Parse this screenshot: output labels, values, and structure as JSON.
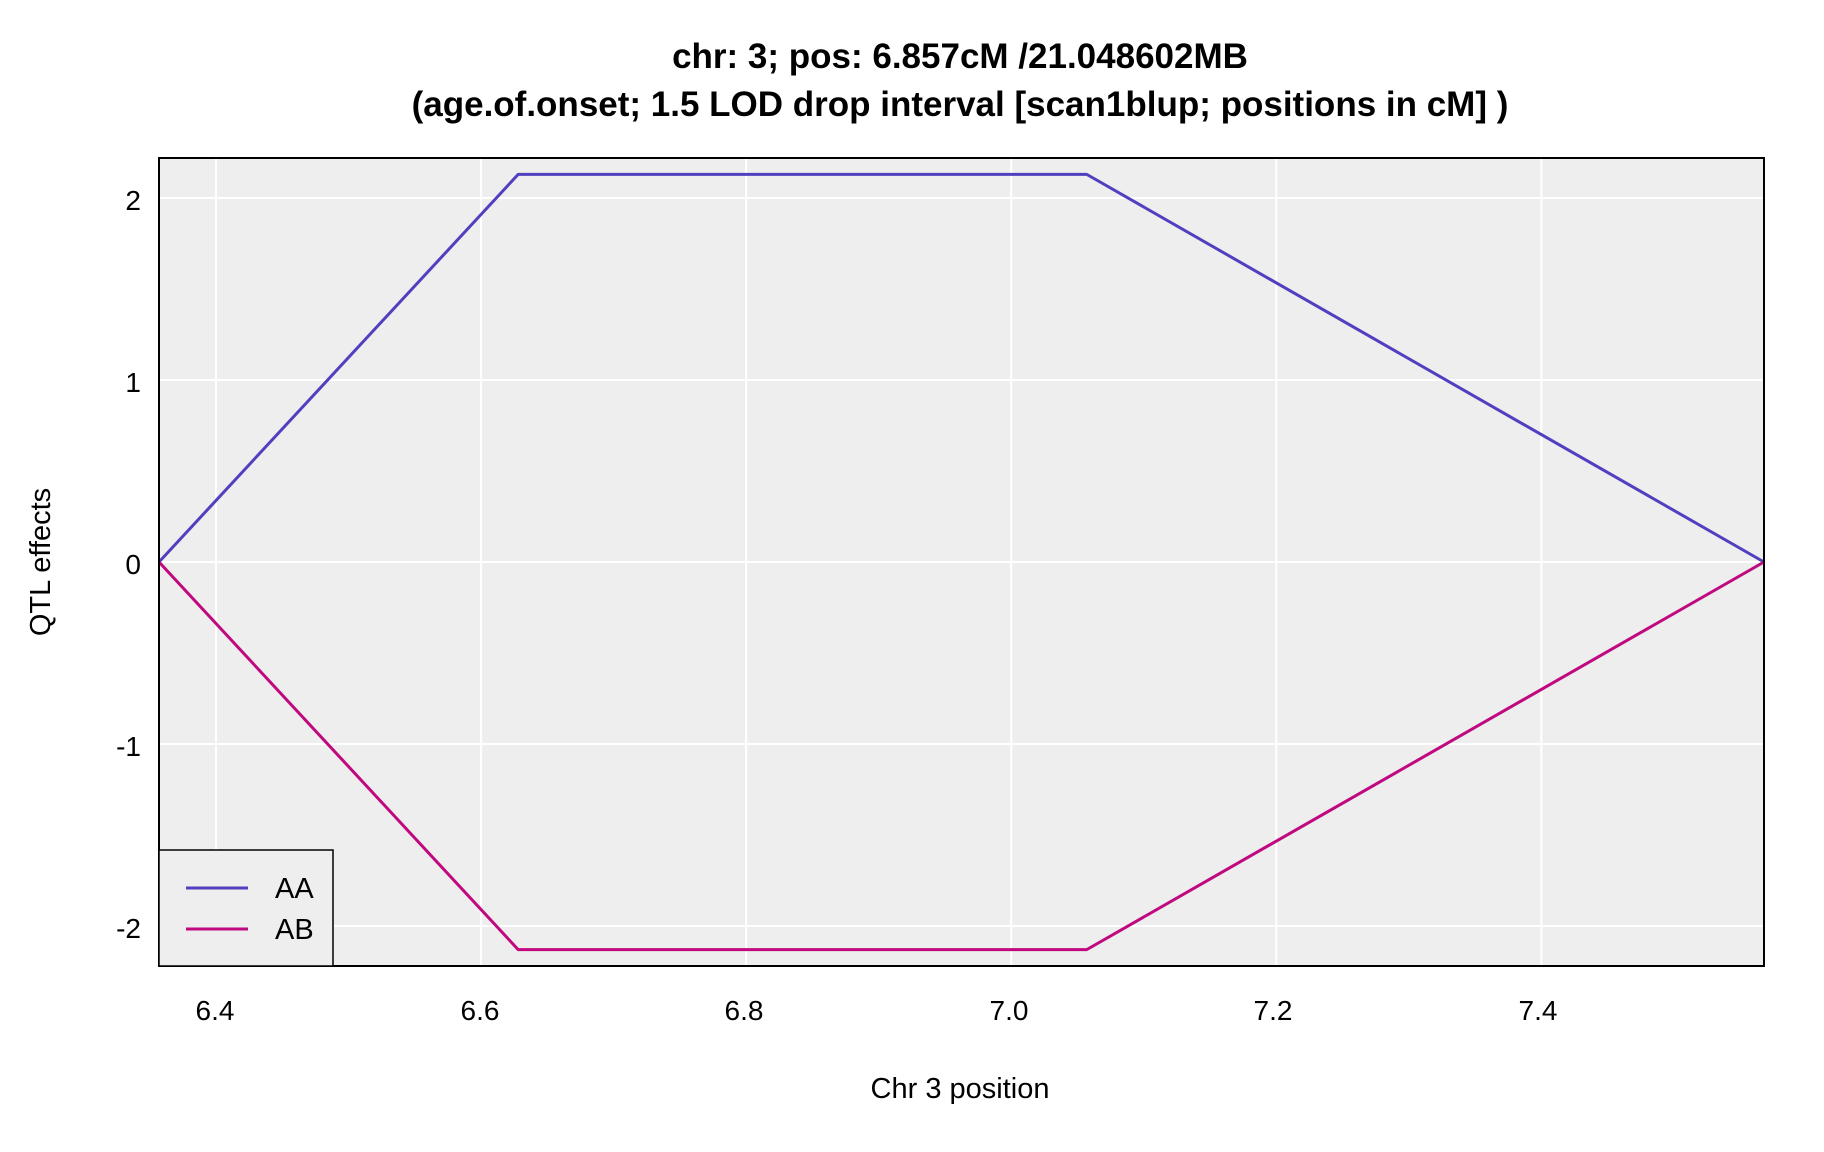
{
  "chart_data": {
    "type": "line",
    "title": "chr: 3; pos: 6.857cM /21.048602MB",
    "subtitle": "(age.of.onset; 1.5 LOD drop interval [scan1blup; positions in cM] )",
    "xlabel": "Chr 3 position",
    "ylabel": "QTL effects",
    "xlim": [
      6.357,
      7.568
    ],
    "ylim": [
      -2.22,
      2.22
    ],
    "x_ticks": [
      "6.4",
      "6.6",
      "6.8",
      "7.0",
      "7.2",
      "7.4"
    ],
    "y_ticks": [
      "2",
      "1",
      "0",
      "-1",
      "-2"
    ],
    "x": [
      6.357,
      6.628,
      7.057,
      7.568
    ],
    "series": [
      {
        "name": "AA",
        "color": "#5040c0",
        "values": [
          0,
          2.13,
          2.13,
          0
        ]
      },
      {
        "name": "AB",
        "color": "#c0087f",
        "values": [
          0,
          -2.13,
          -2.13,
          0
        ]
      }
    ],
    "grid": true,
    "background": "#eeeeee",
    "legend": {
      "position": "bottom-left"
    }
  }
}
